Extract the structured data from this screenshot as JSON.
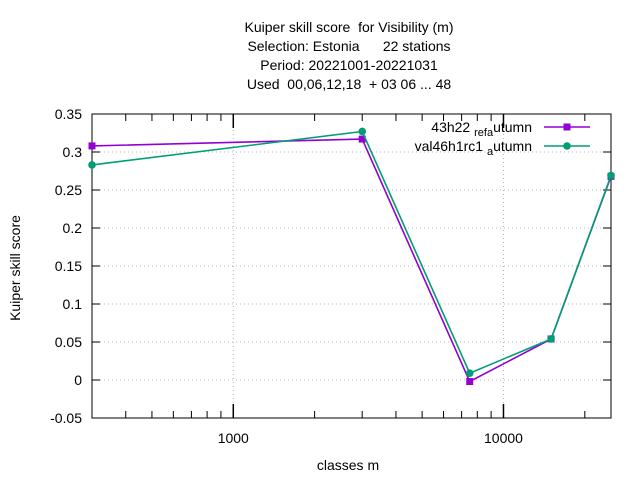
{
  "chart_data": {
    "type": "line",
    "title_lines": [
      "Kuiper skill score  for Visibility (m)",
      "Selection: Estonia      22 stations",
      "Period: 20221001-20221031",
      "Used  00,06,12,18  + 03 06 ... 48"
    ],
    "xlabel": "classes m",
    "ylabel": "Kuiper skill score",
    "x_scale": "log",
    "xlim": [
      300,
      25000
    ],
    "ylim": [
      -0.05,
      0.35
    ],
    "x_ticks": [
      {
        "value": 1000,
        "label": "1000"
      },
      {
        "value": 10000,
        "label": "10000"
      }
    ],
    "y_ticks": [
      {
        "value": -0.05,
        "label": "-0.05"
      },
      {
        "value": 0,
        "label": "0"
      },
      {
        "value": 0.05,
        "label": "0.05"
      },
      {
        "value": 0.1,
        "label": "0.1"
      },
      {
        "value": 0.15,
        "label": "0.15"
      },
      {
        "value": 0.2,
        "label": "0.2"
      },
      {
        "value": 0.25,
        "label": "0.25"
      },
      {
        "value": 0.3,
        "label": "0.3"
      },
      {
        "value": 0.35,
        "label": "0.35"
      }
    ],
    "grid": true,
    "legend_position": "top-right",
    "series": [
      {
        "name_main": "43h22",
        "name_sub1": "ref",
        "name_mid": "",
        "name_sub2": "a",
        "name_tail": "utumn",
        "color": "#9400d3",
        "x": [
          300,
          3000,
          7500,
          15000,
          25000
        ],
        "y": [
          0.308,
          0.317,
          -0.002,
          0.054,
          0.268
        ]
      },
      {
        "name_main": "val46h1rc1",
        "name_sub1": "a",
        "name_mid": "",
        "name_sub2": "",
        "name_tail": "utumn",
        "color": "#009e73",
        "x": [
          300,
          3000,
          7500,
          15000,
          25000
        ],
        "y": [
          0.283,
          0.327,
          0.009,
          0.054,
          0.269
        ]
      }
    ]
  }
}
